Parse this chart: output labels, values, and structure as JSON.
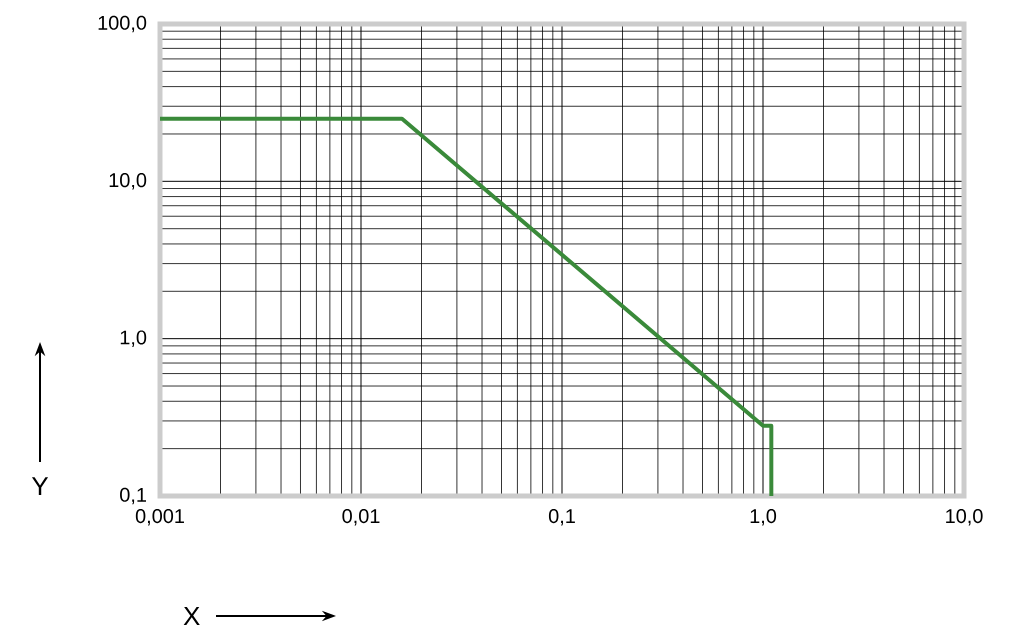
{
  "chart_data": {
    "type": "line",
    "xlabel": "X",
    "ylabel": "Y",
    "log": "xy",
    "xlim": [
      0.001,
      10
    ],
    "ylim": [
      0.1,
      100
    ],
    "xticks": [
      {
        "value": 0.001,
        "label": "0,001"
      },
      {
        "value": 0.01,
        "label": "0,01"
      },
      {
        "value": 0.1,
        "label": "0,1"
      },
      {
        "value": 1,
        "label": "1,0"
      },
      {
        "value": 10,
        "label": "10,0"
      }
    ],
    "yticks": [
      {
        "value": 0.1,
        "label": "0,1"
      },
      {
        "value": 1,
        "label": "1,0"
      },
      {
        "value": 10,
        "label": "10,0"
      },
      {
        "value": 100,
        "label": "100,0"
      }
    ],
    "grid": true,
    "marker": "none",
    "line_style": "solid",
    "series": [
      {
        "color": "#3a8a3a",
        "x": [
          0.001,
          0.016,
          1.0,
          1.1,
          1.1
        ],
        "values": [
          25,
          25,
          0.28,
          0.28,
          0.1
        ]
      }
    ]
  }
}
